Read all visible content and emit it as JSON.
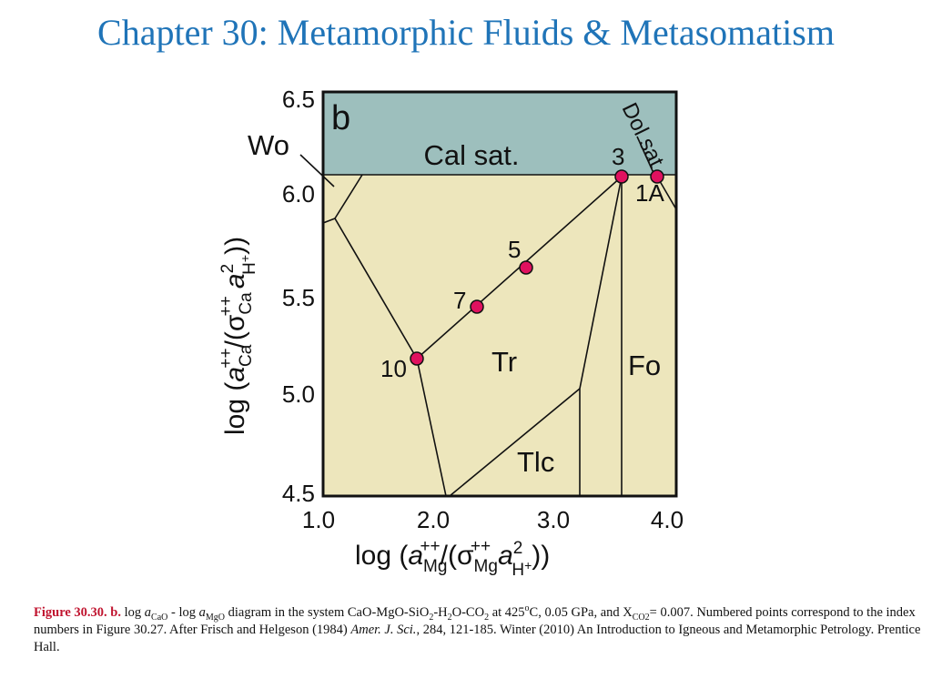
{
  "title": "Chapter 30: Metamorphic Fluids & Metasomatism",
  "figure": {
    "panel_label": "b",
    "fields": {
      "cal_sat": "Cal sat.",
      "wo": "Wo",
      "tr": "Tr",
      "fo": "Fo",
      "tlc": "Tlc",
      "dol_sat": "Dol sat"
    },
    "points": [
      "3",
      "1A",
      "5",
      "7",
      "10"
    ],
    "x_ticks": [
      "1.0",
      "2.0",
      "3.0",
      "4.0"
    ],
    "y_ticks": [
      "6.5",
      "6.0",
      "5.5",
      "5.0",
      "4.5"
    ],
    "x_label": [
      "log (",
      "a",
      "Mg",
      "++",
      "/(σ",
      "Mg",
      "++",
      "a",
      "2",
      "H",
      "+",
      "))"
    ],
    "y_label": [
      "log (",
      "a",
      "Ca",
      "++",
      "/(σ",
      "Ca",
      "++",
      "a",
      "2",
      "H",
      "+",
      "))"
    ]
  },
  "caption": [
    "Figure 30.30. b.",
    " log ",
    "a",
    "CaO",
    " - log ",
    "a",
    "MgO",
    " diagram in the system CaO-MgO-SiO",
    "2",
    "-H",
    "2",
    "O-CO",
    "2",
    " at 425",
    "o",
    "C, 0.05 GPa, and X",
    "CO2",
    "= 0.007. Numbered points correspond to the index numbers in Figure 30.27. After Frisch and Helgeson (1984) ",
    "Amer. J. Sci.",
    ", 284, 121-185. Winter (2010) An Introduction to Igneous and Metamorphic Petrology. Prentice Hall."
  ]
}
